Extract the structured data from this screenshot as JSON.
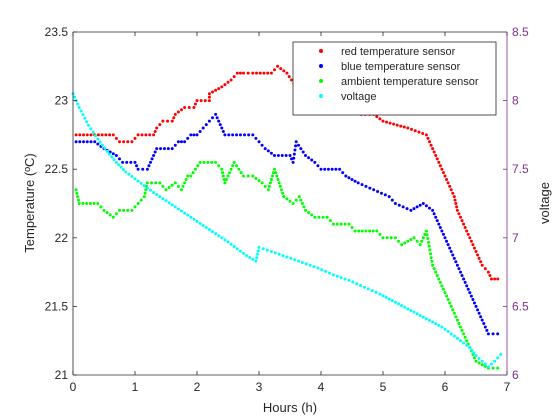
{
  "chart_data": {
    "type": "scatter",
    "xlabel": "Hours (h)",
    "ylabel": "Temperature (ºC)",
    "y2label": "voltage",
    "xlim": [
      0,
      7
    ],
    "ylim": [
      21,
      23.5
    ],
    "y2lim": [
      6,
      8.5
    ],
    "xticks": [
      "0",
      "1",
      "2",
      "3",
      "4",
      "5",
      "6",
      "7"
    ],
    "yticks": [
      "21",
      "21.5",
      "22",
      "22.5",
      "23",
      "23.5"
    ],
    "y2ticks": [
      "6",
      "6.5",
      "7",
      "7.5",
      "8",
      "8.5"
    ],
    "right_axis_color": "#7E2F8E",
    "legend_position": "top-right",
    "grid": false,
    "series": [
      {
        "name": "red temperature sensor",
        "color": "#ff0000",
        "axis": "left",
        "points": [
          [
            0.05,
            22.75
          ],
          [
            0.35,
            22.75
          ],
          [
            0.65,
            22.75
          ],
          [
            0.75,
            22.7
          ],
          [
            0.95,
            22.7
          ],
          [
            1.05,
            22.75
          ],
          [
            1.3,
            22.75
          ],
          [
            1.35,
            22.8
          ],
          [
            1.45,
            22.85
          ],
          [
            1.6,
            22.85
          ],
          [
            1.65,
            22.9
          ],
          [
            1.8,
            22.95
          ],
          [
            1.95,
            22.95
          ],
          [
            2.0,
            23.0
          ],
          [
            2.2,
            23.0
          ],
          [
            2.2,
            23.05
          ],
          [
            2.4,
            23.1
          ],
          [
            2.55,
            23.15
          ],
          [
            2.65,
            23.2
          ],
          [
            2.75,
            23.2
          ],
          [
            2.9,
            23.2
          ],
          [
            3.2,
            23.2
          ],
          [
            3.3,
            23.25
          ],
          [
            3.45,
            23.2
          ],
          [
            3.6,
            23.1
          ],
          [
            3.75,
            23.05
          ],
          [
            3.9,
            23.0
          ],
          [
            4.1,
            23.05
          ],
          [
            4.3,
            23.0
          ],
          [
            4.5,
            22.95
          ],
          [
            4.65,
            22.9
          ],
          [
            4.85,
            22.9
          ],
          [
            5.0,
            22.85
          ],
          [
            5.4,
            22.8
          ],
          [
            5.7,
            22.75
          ],
          [
            5.85,
            22.6
          ],
          [
            5.95,
            22.5
          ],
          [
            6.05,
            22.4
          ],
          [
            6.15,
            22.3
          ],
          [
            6.2,
            22.2
          ],
          [
            6.3,
            22.1
          ],
          [
            6.4,
            22.0
          ],
          [
            6.5,
            21.9
          ],
          [
            6.6,
            21.8
          ],
          [
            6.7,
            21.75
          ],
          [
            6.75,
            21.7
          ],
          [
            6.85,
            21.7
          ]
        ]
      },
      {
        "name": " blue temperature sensor",
        "color": "#0000ff",
        "axis": "left",
        "points": [
          [
            0.05,
            22.7
          ],
          [
            0.35,
            22.7
          ],
          [
            0.5,
            22.65
          ],
          [
            0.7,
            22.6
          ],
          [
            0.8,
            22.55
          ],
          [
            1.0,
            22.55
          ],
          [
            1.05,
            22.5
          ],
          [
            1.2,
            22.5
          ],
          [
            1.35,
            22.65
          ],
          [
            1.6,
            22.65
          ],
          [
            1.7,
            22.7
          ],
          [
            1.8,
            22.7
          ],
          [
            1.9,
            22.75
          ],
          [
            2.0,
            22.75
          ],
          [
            2.1,
            22.8
          ],
          [
            2.2,
            22.85
          ],
          [
            2.3,
            22.9
          ],
          [
            2.35,
            22.85
          ],
          [
            2.45,
            22.75
          ],
          [
            2.7,
            22.75
          ],
          [
            2.9,
            22.75
          ],
          [
            3.0,
            22.7
          ],
          [
            3.1,
            22.65
          ],
          [
            3.25,
            22.6
          ],
          [
            3.5,
            22.6
          ],
          [
            3.55,
            22.55
          ],
          [
            3.6,
            22.7
          ],
          [
            3.75,
            22.6
          ],
          [
            3.9,
            22.55
          ],
          [
            4.0,
            22.5
          ],
          [
            4.3,
            22.5
          ],
          [
            4.4,
            22.45
          ],
          [
            4.6,
            22.4
          ],
          [
            4.85,
            22.35
          ],
          [
            5.1,
            22.3
          ],
          [
            5.2,
            22.25
          ],
          [
            5.45,
            22.2
          ],
          [
            5.65,
            22.25
          ],
          [
            5.8,
            22.2
          ],
          [
            5.9,
            22.1
          ],
          [
            6.0,
            22.0
          ],
          [
            6.1,
            21.9
          ],
          [
            6.2,
            21.8
          ],
          [
            6.3,
            21.7
          ],
          [
            6.4,
            21.6
          ],
          [
            6.5,
            21.5
          ],
          [
            6.6,
            21.4
          ],
          [
            6.7,
            21.3
          ],
          [
            6.85,
            21.3
          ]
        ]
      },
      {
        "name": "ambient temperature sensor",
        "color": "#00ff00",
        "axis": "left",
        "points": [
          [
            0.05,
            22.35
          ],
          [
            0.1,
            22.25
          ],
          [
            0.4,
            22.25
          ],
          [
            0.5,
            22.2
          ],
          [
            0.65,
            22.15
          ],
          [
            0.75,
            22.2
          ],
          [
            0.95,
            22.2
          ],
          [
            1.05,
            22.25
          ],
          [
            1.15,
            22.3
          ],
          [
            1.2,
            22.4
          ],
          [
            1.4,
            22.4
          ],
          [
            1.5,
            22.35
          ],
          [
            1.65,
            22.4
          ],
          [
            1.75,
            22.35
          ],
          [
            1.85,
            22.45
          ],
          [
            1.9,
            22.45
          ],
          [
            2.05,
            22.55
          ],
          [
            2.3,
            22.55
          ],
          [
            2.4,
            22.5
          ],
          [
            2.45,
            22.4
          ],
          [
            2.6,
            22.55
          ],
          [
            2.75,
            22.45
          ],
          [
            2.9,
            22.45
          ],
          [
            3.05,
            22.4
          ],
          [
            3.15,
            22.35
          ],
          [
            3.25,
            22.5
          ],
          [
            3.4,
            22.3
          ],
          [
            3.55,
            22.25
          ],
          [
            3.65,
            22.3
          ],
          [
            3.75,
            22.2
          ],
          [
            3.9,
            22.15
          ],
          [
            4.1,
            22.15
          ],
          [
            4.2,
            22.1
          ],
          [
            4.45,
            22.1
          ],
          [
            4.55,
            22.05
          ],
          [
            4.9,
            22.05
          ],
          [
            5.0,
            22.0
          ],
          [
            5.2,
            22.0
          ],
          [
            5.3,
            21.95
          ],
          [
            5.5,
            22.0
          ],
          [
            5.6,
            21.95
          ],
          [
            5.7,
            22.05
          ],
          [
            5.8,
            21.8
          ],
          [
            5.9,
            21.7
          ],
          [
            6.0,
            21.6
          ],
          [
            6.1,
            21.5
          ],
          [
            6.2,
            21.4
          ],
          [
            6.3,
            21.3
          ],
          [
            6.4,
            21.2
          ],
          [
            6.5,
            21.1
          ],
          [
            6.7,
            21.05
          ],
          [
            6.85,
            21.05
          ]
        ]
      },
      {
        "name": "voltage",
        "color": "#00ffff",
        "axis": "right",
        "points": [
          [
            0.0,
            8.05
          ],
          [
            0.1,
            7.95
          ],
          [
            0.25,
            7.82
          ],
          [
            0.4,
            7.72
          ],
          [
            0.55,
            7.63
          ],
          [
            0.7,
            7.55
          ],
          [
            0.85,
            7.48
          ],
          [
            1.0,
            7.43
          ],
          [
            1.15,
            7.38
          ],
          [
            1.3,
            7.33
          ],
          [
            1.5,
            7.27
          ],
          [
            1.7,
            7.21
          ],
          [
            1.9,
            7.15
          ],
          [
            2.1,
            7.09
          ],
          [
            2.3,
            7.03
          ],
          [
            2.5,
            6.97
          ],
          [
            2.65,
            6.92
          ],
          [
            2.8,
            6.87
          ],
          [
            2.95,
            6.83
          ],
          [
            3.0,
            6.93
          ],
          [
            3.2,
            6.9
          ],
          [
            3.45,
            6.86
          ],
          [
            3.7,
            6.82
          ],
          [
            3.95,
            6.78
          ],
          [
            4.2,
            6.73
          ],
          [
            4.45,
            6.69
          ],
          [
            4.7,
            6.64
          ],
          [
            4.95,
            6.59
          ],
          [
            5.2,
            6.53
          ],
          [
            5.45,
            6.47
          ],
          [
            5.7,
            6.41
          ],
          [
            5.95,
            6.35
          ],
          [
            6.1,
            6.3
          ],
          [
            6.25,
            6.25
          ],
          [
            6.4,
            6.2
          ],
          [
            6.5,
            6.14
          ],
          [
            6.6,
            6.1
          ],
          [
            6.7,
            6.06
          ],
          [
            6.8,
            6.1
          ],
          [
            6.9,
            6.15
          ]
        ]
      }
    ]
  }
}
